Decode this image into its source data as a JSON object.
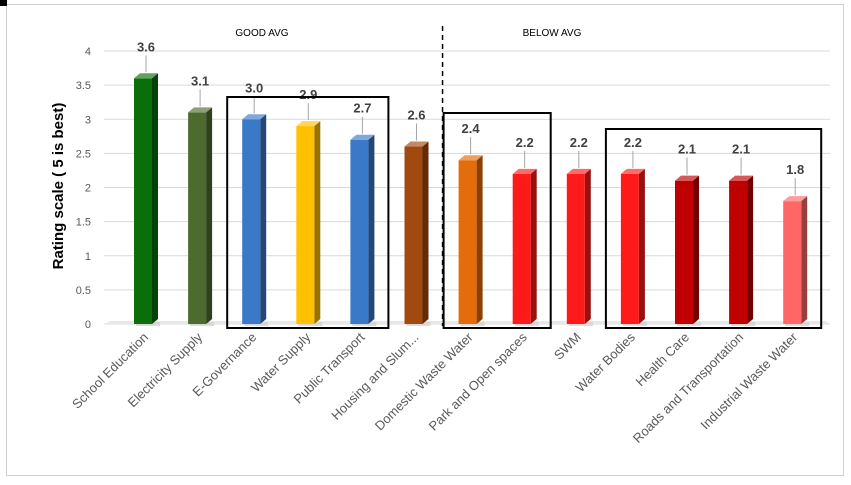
{
  "chart_data": {
    "type": "bar",
    "ylabel": "Rating scale ( 5 is best)",
    "ylim": [
      0,
      4
    ],
    "yticks": [
      "0",
      "0.5",
      "1",
      "1.5",
      "2",
      "2.5",
      "3",
      "3.5",
      "4"
    ],
    "grid": true,
    "categories": [
      "School Education",
      "Electricity Supply",
      "E-Governance",
      "Water Supply",
      "Public Transport",
      "Housing and Slum...",
      "Domestic Waste Water",
      "Park and Open spaces",
      "SWM",
      "Water Bodies",
      "Health Care",
      "Roads and Transportation",
      "Industrial Waste Water"
    ],
    "values": [
      3.6,
      3.1,
      3.0,
      2.9,
      2.7,
      2.6,
      2.4,
      2.2,
      2.2,
      2.2,
      2.1,
      2.1,
      1.8
    ],
    "value_labels": [
      "3.6",
      "3.1",
      "3.0",
      "2.9",
      "2.7",
      "2.6",
      "2.4",
      "2.2",
      "2.2",
      "2.2",
      "2.1",
      "2.1",
      "1.8"
    ],
    "colors": [
      "#0a6e0a",
      "#4e6b2f",
      "#3a78c8",
      "#ffc000",
      "#3a78c8",
      "#a04a10",
      "#e46c0a",
      "#ff1a1a",
      "#ff1a1a",
      "#ff1a1a",
      "#c00000",
      "#c00000",
      "#ff6666"
    ],
    "group_labels": {
      "left": "GOOD AVG",
      "right": "BELOW AVG"
    },
    "highlight_boxes": [
      [
        2,
        4
      ],
      [
        6,
        7
      ],
      [
        9,
        12
      ]
    ],
    "divider_after_index": 5
  }
}
